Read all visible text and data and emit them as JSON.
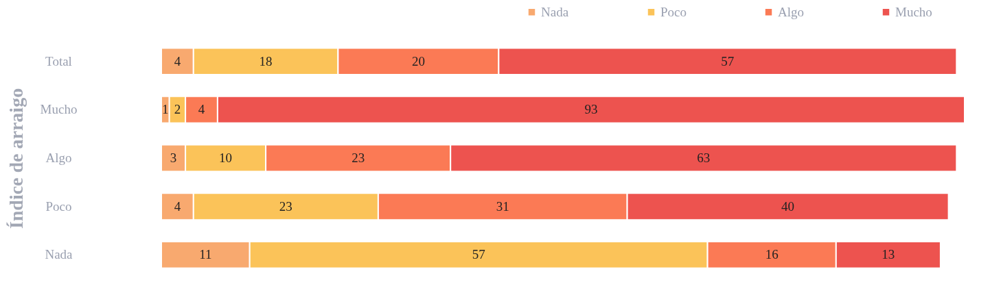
{
  "chart_data": {
    "type": "bar",
    "orientation": "horizontal",
    "stacked": true,
    "data_labels": true,
    "legend": "top right",
    "grid": false,
    "ylabel": "Índice de arraigo",
    "categories": [
      "Total",
      "Mucho",
      "Algo",
      "Poco",
      "Nada"
    ],
    "series": [
      {
        "name": "Nada",
        "color": "#f8a96f",
        "values": [
          4,
          1,
          3,
          4,
          11
        ]
      },
      {
        "name": "Poco",
        "color": "#fbc359",
        "values": [
          18,
          2,
          10,
          23,
          57
        ]
      },
      {
        "name": "Algo",
        "color": "#fb7a55",
        "values": [
          20,
          4,
          23,
          31,
          16
        ]
      },
      {
        "name": "Mucho",
        "color": "#ed534f",
        "values": [
          57,
          93,
          63,
          40,
          13
        ]
      }
    ]
  }
}
